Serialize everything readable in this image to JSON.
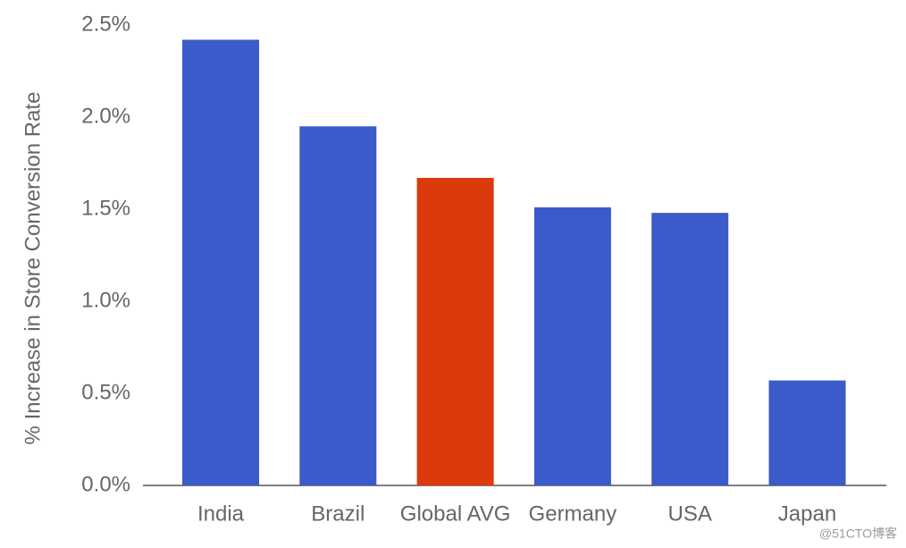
{
  "chart_data": {
    "type": "bar",
    "y_axis_label": "% Increase in Store Conversion Rate",
    "categories": [
      "India",
      "Brazil",
      "Global AVG",
      "Germany",
      "USA",
      "Japan"
    ],
    "values": [
      2.42,
      1.95,
      1.67,
      1.51,
      1.48,
      0.57
    ],
    "colors": [
      "#3a5bc9",
      "#3a5bc9",
      "#dc3a0c",
      "#3a5bc9",
      "#3a5bc9",
      "#3a5bc9"
    ],
    "ylim": [
      0,
      2.5
    ],
    "yticks": [
      {
        "value": 0,
        "label": "0.0%"
      },
      {
        "value": 0.5,
        "label": "0.5%"
      },
      {
        "value": 1,
        "label": "1.0%"
      },
      {
        "value": 1.5,
        "label": "1.5%"
      },
      {
        "value": 2,
        "label": "2.0%"
      },
      {
        "value": 2.5,
        "label": "2.5%"
      }
    ],
    "grid": false,
    "watermark": "@51CTO博客"
  }
}
